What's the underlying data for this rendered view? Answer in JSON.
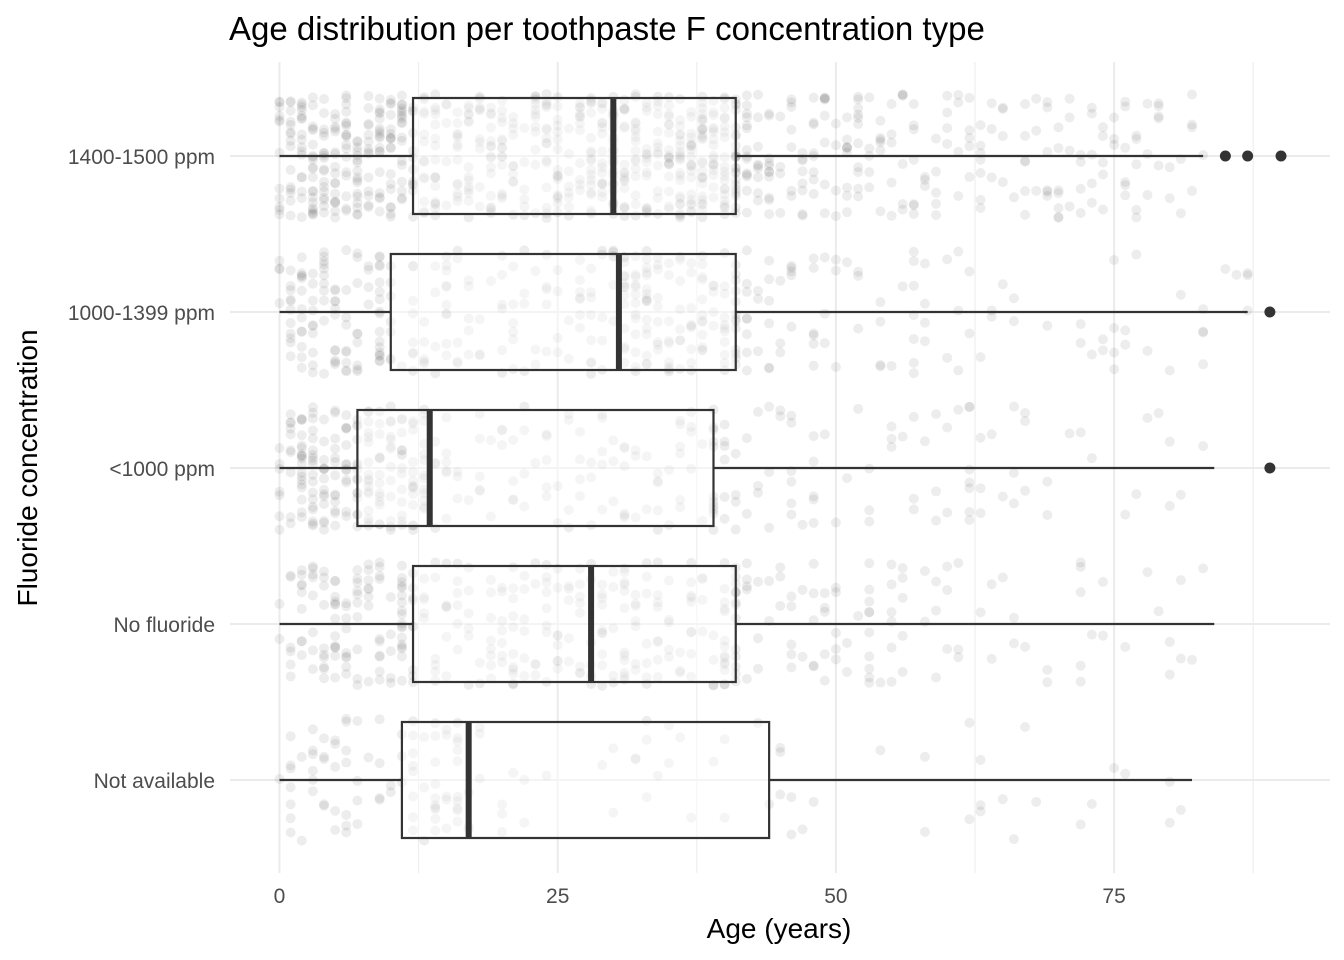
{
  "chart_data": {
    "type": "boxplot",
    "title": "Age distribution per toothpaste F concentration type",
    "xlabel": "Age (years)",
    "ylabel": "Fluoride concentration",
    "xlim": [
      -3,
      94
    ],
    "x_ticks": [
      "0",
      "25",
      "50",
      "75"
    ],
    "x_tick_values": [
      0,
      25,
      50,
      75
    ],
    "grid": "on",
    "legend": "none",
    "categories": [
      "1400-1500 ppm",
      "1000-1399 ppm",
      "<1000 ppm",
      "No fluoride",
      "Not available"
    ],
    "boxes": [
      {
        "category": "1400-1500 ppm",
        "whisker_low": 0,
        "q1": 12,
        "median": 30,
        "q3": 41,
        "whisker_high": 83,
        "outliers": [
          85,
          87,
          90
        ]
      },
      {
        "category": "1000-1399 ppm",
        "whisker_low": 0,
        "q1": 10,
        "median": 30.5,
        "q3": 41,
        "whisker_high": 87,
        "outliers": [
          89
        ]
      },
      {
        "category": "<1000 ppm",
        "whisker_low": 0,
        "q1": 7,
        "median": 13.5,
        "q3": 39,
        "whisker_high": 84,
        "outliers": [
          89
        ]
      },
      {
        "category": "No fluoride",
        "whisker_low": 0,
        "q1": 12,
        "median": 28,
        "q3": 41,
        "whisker_high": 84,
        "outliers": []
      },
      {
        "category": "Not available",
        "whisker_low": 0,
        "q1": 11,
        "median": 17,
        "q3": 44,
        "whisker_high": 82,
        "outliers": []
      }
    ],
    "colors": {
      "box_stroke": "#333333",
      "box_fill": "#ffffff",
      "points": "#000000",
      "grid": "#ebebeb",
      "tick_text": "#4d4d4d"
    }
  }
}
